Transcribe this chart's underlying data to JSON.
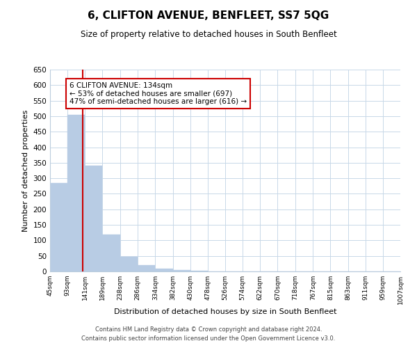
{
  "title": "6, CLIFTON AVENUE, BENFLEET, SS7 5QG",
  "subtitle": "Size of property relative to detached houses in South Benfleet",
  "xlabel": "Distribution of detached houses by size in South Benfleet",
  "ylabel": "Number of detached properties",
  "bar_values": [
    285,
    505,
    340,
    118,
    47,
    20,
    10,
    5,
    2,
    1,
    0,
    0,
    0,
    1,
    0,
    0,
    0,
    1,
    0,
    0
  ],
  "bin_edges": [
    45,
    93,
    141,
    189,
    238,
    286,
    334,
    382,
    430,
    478,
    526,
    574,
    622,
    670,
    718,
    767,
    815,
    863,
    911,
    959,
    1007
  ],
  "tick_labels": [
    "45sqm",
    "93sqm",
    "141sqm",
    "189sqm",
    "238sqm",
    "286sqm",
    "334sqm",
    "382sqm",
    "430sqm",
    "478sqm",
    "526sqm",
    "574sqm",
    "622sqm",
    "670sqm",
    "718sqm",
    "767sqm",
    "815sqm",
    "863sqm",
    "911sqm",
    "959sqm",
    "1007sqm"
  ],
  "bar_color": "#b8cce4",
  "bar_edgecolor": "#b8cce4",
  "red_line_x": 134,
  "ylim": [
    0,
    650
  ],
  "yticks": [
    0,
    50,
    100,
    150,
    200,
    250,
    300,
    350,
    400,
    450,
    500,
    550,
    600,
    650
  ],
  "annotation_title": "6 CLIFTON AVENUE: 134sqm",
  "annotation_line1": "← 53% of detached houses are smaller (697)",
  "annotation_line2": "47% of semi-detached houses are larger (616) →",
  "footer1": "Contains HM Land Registry data © Crown copyright and database right 2024.",
  "footer2": "Contains public sector information licensed under the Open Government Licence v3.0.",
  "background_color": "#ffffff",
  "grid_color": "#c8d8e8",
  "title_fontsize": 11,
  "subtitle_fontsize": 8.5,
  "annotation_box_edgecolor": "#cc0000",
  "red_line_color": "#cc0000"
}
